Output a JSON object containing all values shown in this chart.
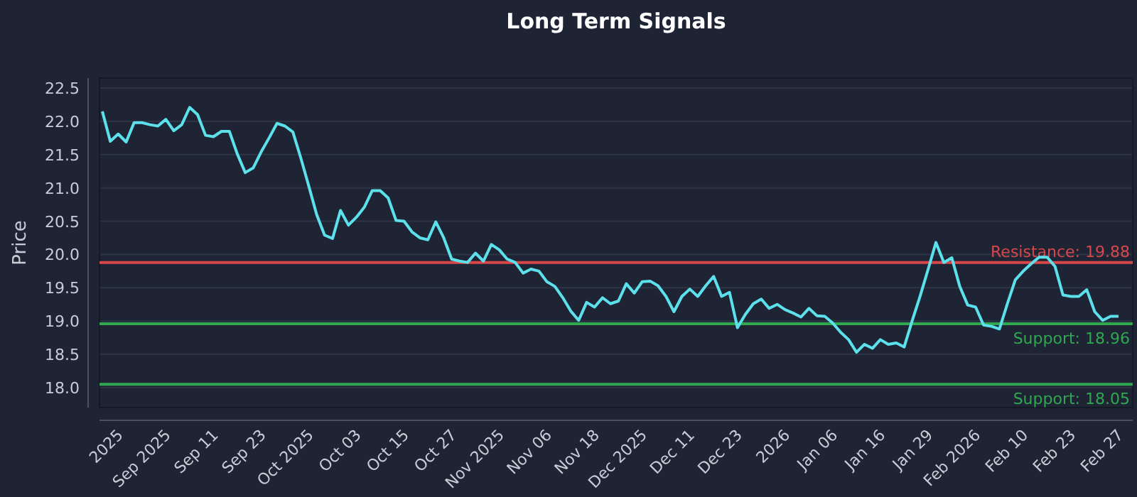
{
  "chart_data": {
    "type": "line",
    "title": "Long Term Signals",
    "ylabel": "Price",
    "categories": [
      null,
      null,
      "2025",
      null,
      null,
      null,
      null,
      null,
      "Sep 2025",
      null,
      null,
      null,
      null,
      null,
      "Sep 11",
      null,
      null,
      null,
      null,
      null,
      "Sep 23",
      null,
      null,
      null,
      null,
      null,
      "Oct 2025",
      null,
      null,
      null,
      null,
      null,
      "Oct 03",
      null,
      null,
      null,
      null,
      null,
      "Oct 15",
      null,
      null,
      null,
      null,
      null,
      "Oct 27",
      null,
      null,
      null,
      null,
      null,
      "Nov 2025",
      null,
      null,
      null,
      null,
      null,
      "Nov 06",
      null,
      null,
      null,
      null,
      null,
      "Nov 18",
      null,
      null,
      null,
      null,
      null,
      "Dec 2025",
      null,
      null,
      null,
      null,
      null,
      "Dec 11",
      null,
      null,
      null,
      null,
      null,
      "Dec 23",
      null,
      null,
      null,
      null,
      null,
      "2026",
      null,
      null,
      null,
      null,
      null,
      "Jan 06",
      null,
      null,
      null,
      null,
      null,
      "Jan 16",
      null,
      null,
      null,
      null,
      null,
      "Jan 29",
      null,
      null,
      null,
      null,
      null,
      "Feb 2026",
      null,
      null,
      null,
      null,
      null,
      "Feb 10",
      null,
      null,
      null,
      null,
      null,
      "Feb 23",
      null,
      null,
      null,
      null,
      null,
      "Feb 27"
    ],
    "series": [
      {
        "color": "#5ce1ec",
        "values": [
          22.15,
          21.7,
          21.81,
          21.69,
          21.98,
          21.98,
          21.95,
          21.93,
          22.03,
          21.86,
          21.95,
          22.21,
          22.1,
          21.79,
          21.77,
          21.85,
          21.85,
          21.51,
          21.23,
          21.3,
          21.54,
          21.75,
          21.97,
          21.93,
          21.84,
          21.45,
          21.03,
          20.6,
          20.29,
          20.24,
          20.66,
          20.44,
          20.56,
          20.71,
          20.96,
          20.96,
          20.85,
          20.51,
          20.5,
          20.34,
          20.25,
          20.22,
          20.49,
          20.25,
          19.93,
          19.9,
          19.88,
          20.02,
          19.9,
          20.15,
          20.07,
          19.93,
          19.88,
          19.72,
          19.78,
          19.75,
          19.59,
          19.52,
          19.35,
          19.15,
          19.01,
          19.28,
          19.21,
          19.35,
          19.26,
          19.3,
          19.56,
          19.42,
          19.59,
          19.6,
          19.53,
          19.37,
          19.14,
          19.37,
          19.48,
          19.37,
          19.53,
          19.67,
          19.37,
          19.43,
          18.9,
          19.1,
          19.26,
          19.33,
          19.19,
          19.25,
          19.17,
          19.12,
          19.06,
          19.19,
          19.08,
          19.07,
          18.97,
          18.83,
          18.72,
          18.53,
          18.65,
          18.59,
          18.72,
          18.65,
          18.67,
          18.61,
          19.0,
          19.37,
          19.77,
          20.18,
          19.88,
          19.95,
          19.52,
          19.24,
          19.21,
          18.94,
          18.92,
          18.88,
          19.26,
          19.62,
          19.75,
          19.86,
          19.96,
          19.96,
          19.82,
          19.39,
          19.37,
          19.37,
          19.47,
          19.14,
          19.01,
          19.07,
          19.07
        ]
      }
    ],
    "ylim": [
      17.7,
      22.65
    ],
    "yticks": [
      {
        "value": 18,
        "label": "18.0"
      },
      18.5,
      {
        "value": 19,
        "label": "19.0"
      },
      19.5,
      {
        "value": 20,
        "label": "20.0"
      },
      20.5,
      {
        "value": 21,
        "label": "21.0"
      },
      21.5,
      {
        "value": 22,
        "label": "22.0"
      },
      22.5
    ],
    "grid": "y",
    "line_style": "solid",
    "marker": "none",
    "ref_lines": [
      {
        "axis": "y",
        "value": 19.88,
        "label": "Resistance: 19.88",
        "color": "#d9474b"
      },
      {
        "axis": "y",
        "value": 18.96,
        "label": "Support: 18.96",
        "color": "#2fa84f"
      },
      {
        "axis": "y",
        "value": 18.05,
        "label": "Support: 18.05",
        "color": "#2fa84f"
      }
    ]
  }
}
